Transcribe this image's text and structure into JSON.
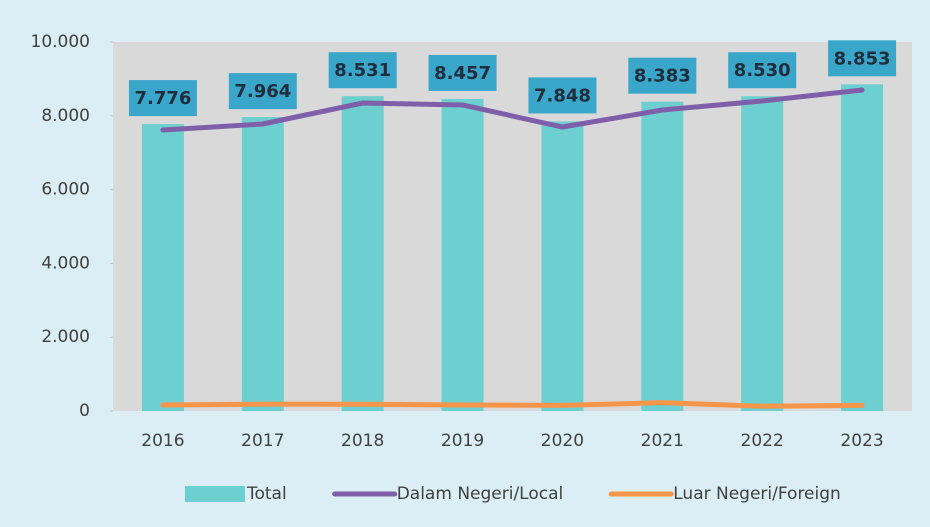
{
  "chart_data": {
    "type": "combo",
    "categories": [
      "2016",
      "2017",
      "2018",
      "2019",
      "2020",
      "2021",
      "2022",
      "2023"
    ],
    "series": [
      {
        "name": "Total",
        "type": "bar",
        "color": "#6dcfcf",
        "values": [
          7776,
          7964,
          8531,
          8457,
          7848,
          8383,
          8530,
          8853
        ],
        "value_labels": [
          "7.776",
          "7.964",
          "8.531",
          "8.457",
          "7.848",
          "8.383",
          "8.530",
          "8.853"
        ]
      },
      {
        "name": "Dalam Negeri/Local",
        "type": "line",
        "color": "#7f5faa",
        "values": [
          7615,
          7778,
          8347,
          8293,
          7696,
          8157,
          8401,
          8699
        ]
      },
      {
        "name": "Luar Negeri/Foreign",
        "type": "line",
        "color": "#f5964a",
        "values": [
          161,
          186,
          184,
          164,
          152,
          226,
          129,
          154
        ]
      }
    ],
    "ylim": [
      0,
      10000
    ],
    "yticks": [
      0,
      {
        "value": 2000,
        "label": "2.000"
      },
      {
        "value": 4000,
        "label": "4.000"
      },
      {
        "value": 6000,
        "label": "6.000"
      },
      {
        "value": 8000,
        "label": "8.000"
      },
      {
        "value": 10000,
        "label": "10.000"
      }
    ],
    "label_color": "#3aa6c9",
    "plot_background": "#d9d9d9",
    "legend": "bottom"
  }
}
